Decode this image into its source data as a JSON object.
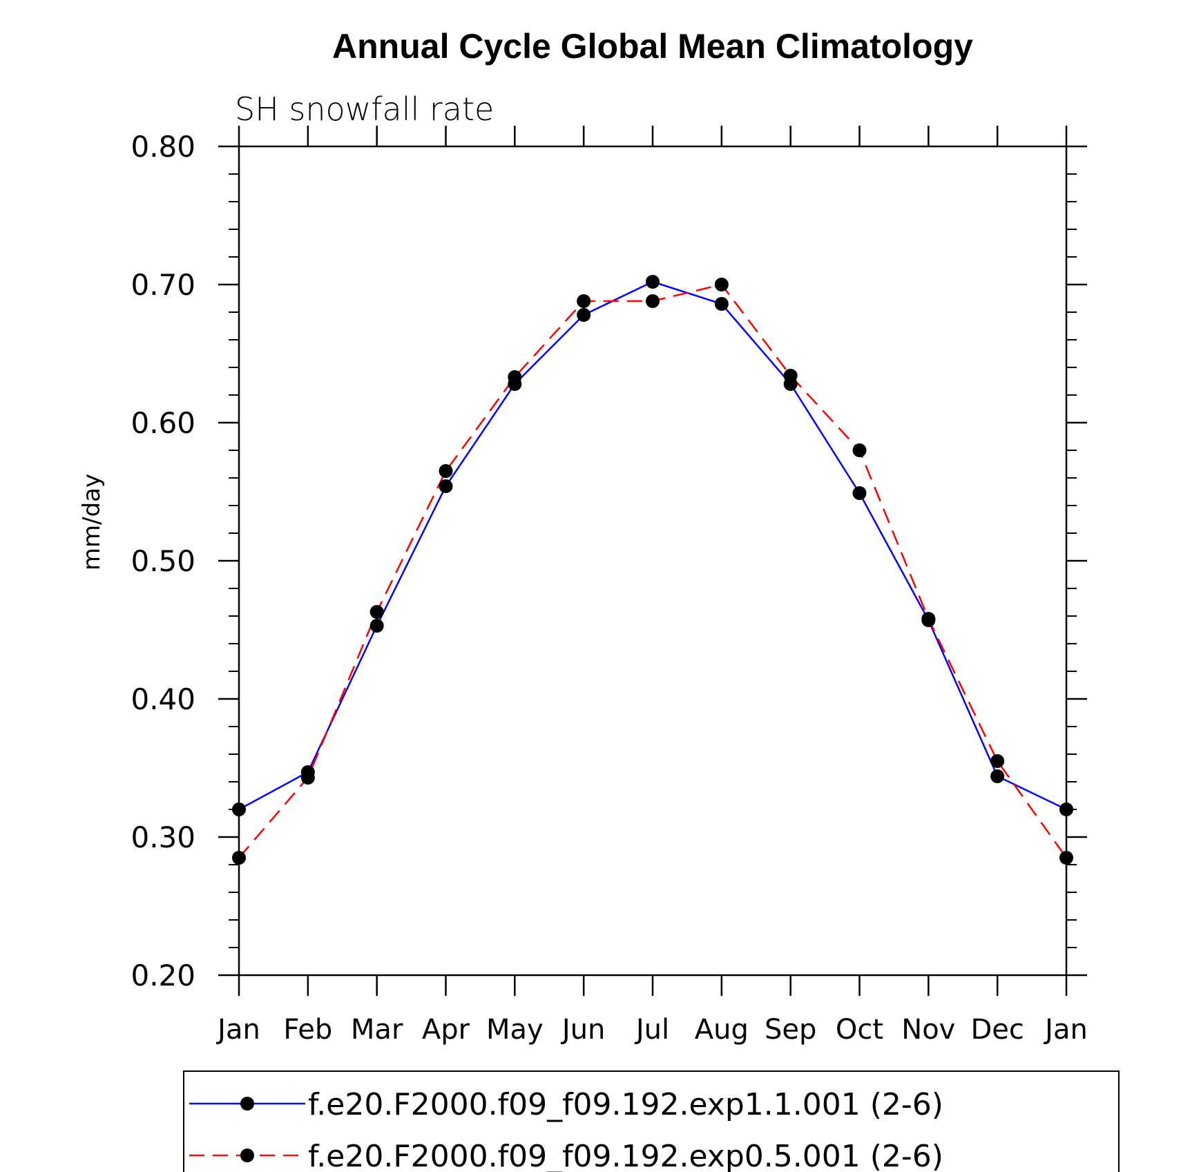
{
  "chart_data": {
    "type": "line",
    "title": "Annual Cycle Global Mean Climatology",
    "subtitle": "SH snowfall rate",
    "ylabel": "mm/day",
    "xlabel": "",
    "ylim": [
      0.2,
      0.8
    ],
    "yticks": [
      "0.80",
      "0.70",
      "0.60",
      "0.50",
      "0.40",
      "0.30",
      "0.20"
    ],
    "yticks_values": [
      0.8,
      0.7,
      0.6,
      0.5,
      0.4,
      0.3,
      0.2
    ],
    "categories": [
      "Jan",
      "Feb",
      "Mar",
      "Apr",
      "May",
      "Jun",
      "Jul",
      "Aug",
      "Sep",
      "Oct",
      "Nov",
      "Dec",
      "Jan"
    ],
    "grid": false,
    "legend_position": "bottom",
    "series": [
      {
        "name": "f.e20.F2000.f09_f09.192.exp1.1.001 (2-6)",
        "color": "#0000ff",
        "dash": "solid",
        "marker": "filled-circle",
        "values": [
          0.32,
          0.347,
          0.453,
          0.554,
          0.628,
          0.678,
          0.702,
          0.686,
          0.628,
          0.549,
          0.457,
          0.344,
          0.32
        ]
      },
      {
        "name": "f.e20.F2000.f09_f09.192.exp0.5.001 (2-6)",
        "color": "#ff0000",
        "dash": "dashed",
        "marker": "filled-circle",
        "values": [
          0.285,
          0.343,
          0.463,
          0.565,
          0.633,
          0.688,
          0.688,
          0.7,
          0.634,
          0.58,
          0.458,
          0.355,
          0.285
        ]
      }
    ]
  }
}
